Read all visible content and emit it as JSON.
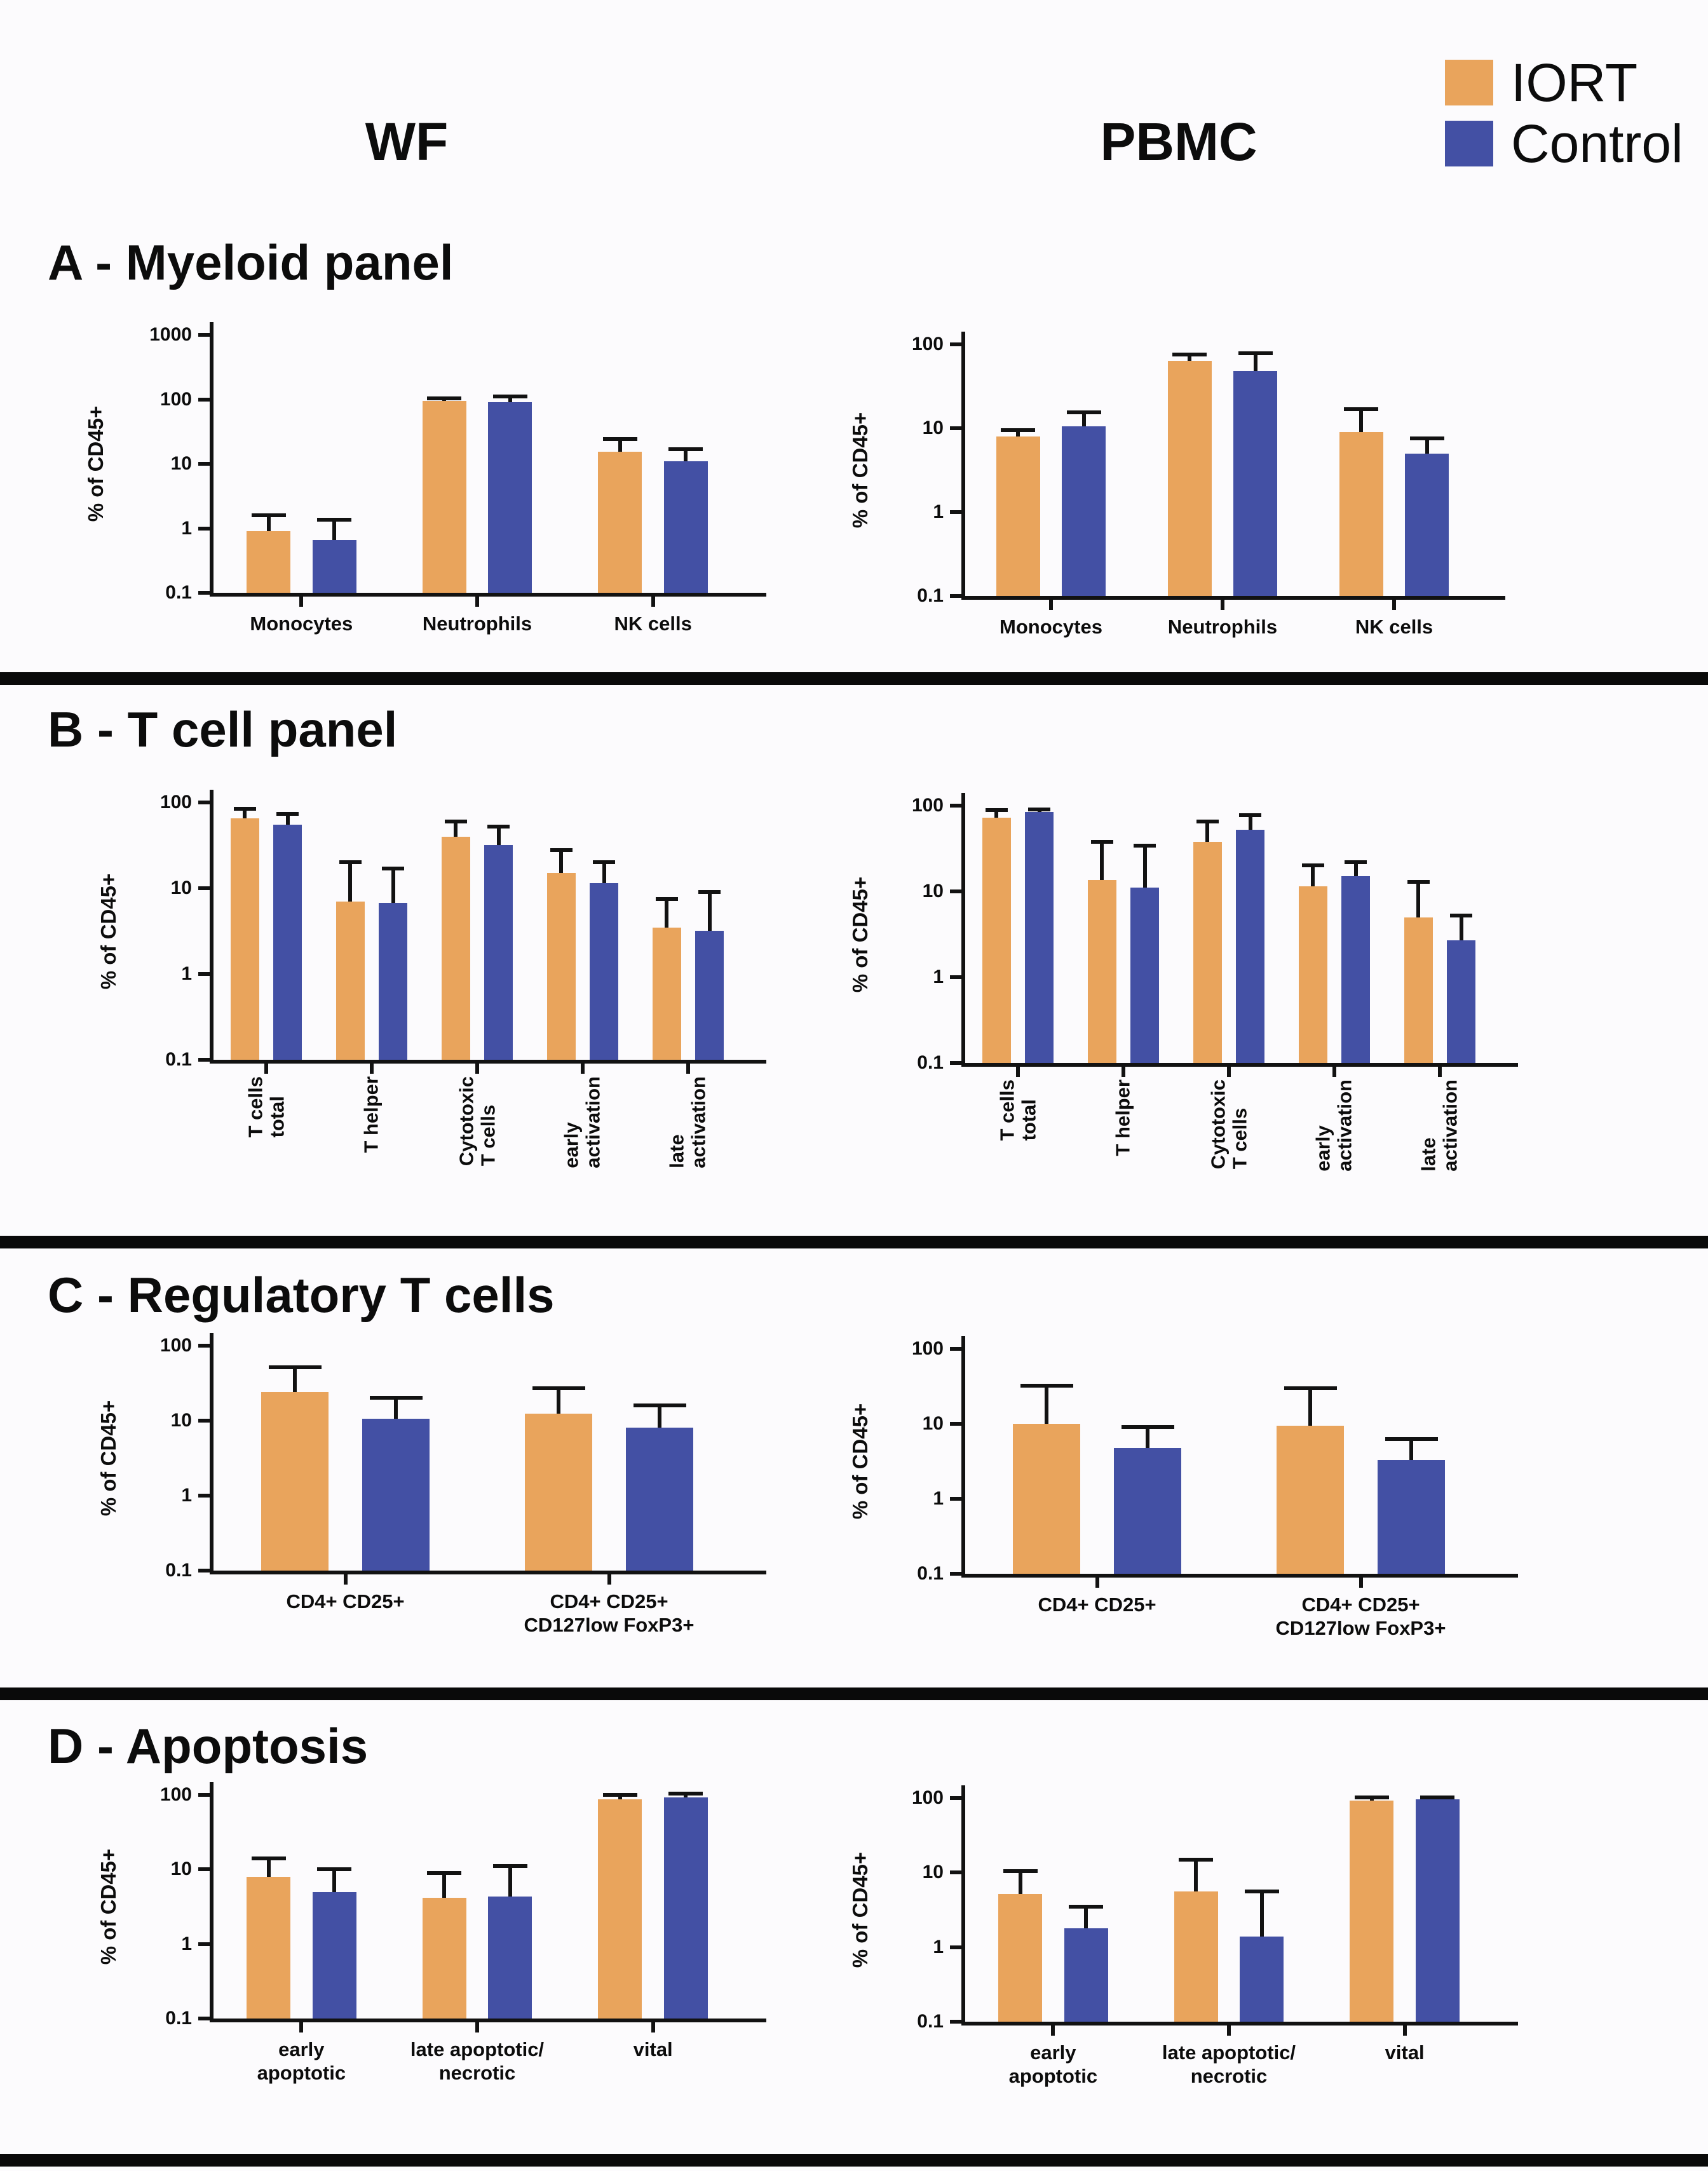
{
  "figure": {
    "column_headers": [
      "WF",
      "PBMC"
    ],
    "panel_titles": [
      "A - Myeloid panel",
      "B - T cell panel",
      "C - Regulatory T cells",
      "D - Apoptosis"
    ],
    "y_axis_label": "% of CD45+"
  },
  "legend": {
    "items": [
      {
        "label": "IORT",
        "color": "#E9A45C"
      },
      {
        "label": "Control",
        "color": "#4350A4"
      }
    ]
  },
  "chart_data": [
    {
      "type": "bar",
      "panel": "A - Myeloid panel",
      "column": "WF",
      "ylabel": "% of CD45+",
      "ylim": [
        0.1,
        1000
      ],
      "yticks": [
        1000,
        100,
        10,
        1,
        0.1
      ],
      "yscale": "log",
      "grid": false,
      "categories": [
        "Monocytes",
        "Neutrophils",
        "NK cells"
      ],
      "series": [
        {
          "name": "IORT",
          "values": [
            0.9,
            95,
            15.5
          ],
          "err_top": [
            1.6,
            104,
            24
          ]
        },
        {
          "name": "Control",
          "values": [
            0.65,
            90,
            11
          ],
          "err_top": [
            1.35,
            110,
            17
          ]
        }
      ]
    },
    {
      "type": "bar",
      "panel": "A - Myeloid panel",
      "column": "PBMC",
      "ylabel": "% of CD45+",
      "ylim": [
        0.1,
        100
      ],
      "yticks": [
        100,
        10,
        1,
        0.1
      ],
      "yscale": "log",
      "grid": false,
      "categories": [
        "Monocytes",
        "Neutrophils",
        "NK cells"
      ],
      "series": [
        {
          "name": "IORT",
          "values": [
            8,
            63,
            9
          ],
          "err_top": [
            9.5,
            76,
            17
          ]
        },
        {
          "name": "Control",
          "values": [
            10.5,
            48,
            5
          ],
          "err_top": [
            15.5,
            78,
            7.6
          ]
        }
      ]
    },
    {
      "type": "bar",
      "panel": "B - T cell panel",
      "column": "WF",
      "ylabel": "% of CD45+",
      "ylim": [
        0.1,
        100
      ],
      "yticks": [
        100,
        10,
        1,
        0.1
      ],
      "yscale": "log",
      "grid": false,
      "categories": [
        "T cells\ntotal",
        "T helper",
        "Cytotoxic\nT cells",
        "early\nactivation",
        "late\nactivation"
      ],
      "series": [
        {
          "name": "IORT",
          "values": [
            65,
            7,
            40,
            15,
            3.5
          ],
          "err_top": [
            85,
            20,
            60,
            28,
            7.5
          ]
        },
        {
          "name": "Control",
          "values": [
            55,
            6.8,
            32,
            11.5,
            3.2
          ],
          "err_top": [
            73,
            17,
            52,
            20,
            9
          ]
        }
      ]
    },
    {
      "type": "bar",
      "panel": "B - T cell panel",
      "column": "PBMC",
      "ylabel": "% of CD45+",
      "ylim": [
        0.1,
        100
      ],
      "yticks": [
        100,
        10,
        1,
        0.1
      ],
      "yscale": "log",
      "grid": false,
      "categories": [
        "T cells\ntotal",
        "T helper",
        "Cytotoxic\nT cells",
        "early\nactivation",
        "late\nactivation"
      ],
      "series": [
        {
          "name": "IORT",
          "values": [
            72,
            13.5,
            38,
            11.5,
            5
          ],
          "err_top": [
            88,
            38,
            65,
            20,
            13
          ]
        },
        {
          "name": "Control",
          "values": [
            84,
            11,
            52,
            15,
            2.7
          ],
          "err_top": [
            91,
            34,
            78,
            22,
            5.2
          ]
        }
      ]
    },
    {
      "type": "bar",
      "panel": "C - Regulatory T cells",
      "column": "WF",
      "ylabel": "% of CD45+",
      "ylim": [
        0.1,
        100
      ],
      "yticks": [
        100,
        10,
        1,
        0.1
      ],
      "yscale": "log",
      "grid": false,
      "categories": [
        "CD4+ CD25+",
        "CD4+ CD25+\nCD127low FoxP3+"
      ],
      "series": [
        {
          "name": "IORT",
          "values": [
            24,
            12.5
          ],
          "err_top": [
            52,
            27
          ]
        },
        {
          "name": "Control",
          "values": [
            10.5,
            8
          ],
          "err_top": [
            20,
            16
          ]
        }
      ]
    },
    {
      "type": "bar",
      "panel": "C - Regulatory T cells",
      "column": "PBMC",
      "ylabel": "% of CD45+",
      "ylim": [
        0.1,
        100
      ],
      "yticks": [
        100,
        10,
        1,
        0.1
      ],
      "yscale": "log",
      "grid": false,
      "categories": [
        "CD4+ CD25+",
        "CD4+ CD25+\nCD127low FoxP3+"
      ],
      "series": [
        {
          "name": "IORT",
          "values": [
            10,
            9.5
          ],
          "err_top": [
            32,
            30
          ]
        },
        {
          "name": "Control",
          "values": [
            4.8,
            3.3
          ],
          "err_top": [
            9,
            6.2
          ]
        }
      ]
    },
    {
      "type": "bar",
      "panel": "D - Apoptosis",
      "column": "WF",
      "ylabel": "% of CD45+",
      "ylim": [
        0.1,
        100
      ],
      "yticks": [
        100,
        10,
        1,
        0.1
      ],
      "yscale": "log",
      "grid": false,
      "categories": [
        "early\napoptotic",
        "late apoptotic/\nnecrotic",
        "vital"
      ],
      "series": [
        {
          "name": "IORT",
          "values": [
            8,
            4.2,
            88
          ],
          "err_top": [
            14,
            9,
            100
          ]
        },
        {
          "name": "Control",
          "values": [
            5,
            4.3,
            92
          ],
          "err_top": [
            10,
            11,
            105
          ]
        }
      ]
    },
    {
      "type": "bar",
      "panel": "D - Apoptosis",
      "column": "PBMC",
      "ylabel": "% of CD45+",
      "ylim": [
        0.1,
        100
      ],
      "yticks": [
        100,
        10,
        1,
        0.1
      ],
      "yscale": "log",
      "grid": false,
      "categories": [
        "early\napoptotic",
        "late apoptotic/\nnecrotic",
        "vital"
      ],
      "series": [
        {
          "name": "IORT",
          "values": [
            5.2,
            5.6,
            92
          ],
          "err_top": [
            10.5,
            15,
            103
          ]
        },
        {
          "name": "Control",
          "values": [
            1.8,
            1.4,
            97
          ],
          "err_top": [
            3.5,
            5.6,
            103
          ]
        }
      ]
    }
  ]
}
